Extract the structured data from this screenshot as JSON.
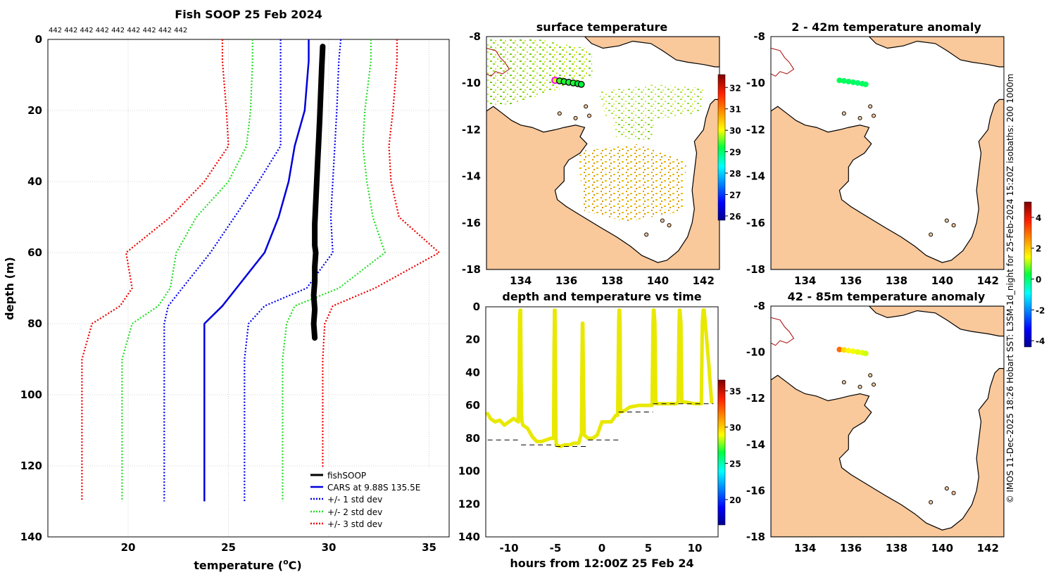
{
  "colors": {
    "land": "#f9c89b",
    "profile": "#000000",
    "cars": "#0000dd",
    "sd1": "#0000ee",
    "sd2": "#22dd22",
    "sd3": "#ee0000",
    "trace": "#e8e800",
    "grid": "#b0b0b0",
    "isobath": "#aa0000"
  },
  "caption": "© IMOS 11-Dec-2025 18:26 Hobart SST: L3SM-1d_night for 25-Feb-2024 15:20Z isobaths: 200  1000m",
  "chart_data": [
    {
      "id": "profile",
      "type": "line",
      "title": "Fish SOOP 25 Feb 2024",
      "subtitle": "442 442 442 442 442 442 442 442 442",
      "xlabel": "temperature (°C)",
      "xlabel_main": "temperature (",
      "xlabel_unit_sup": "o",
      "xlabel_unit_c": "C)",
      "ylabel": "depth (m)",
      "xlim": [
        16,
        36
      ],
      "ylim": [
        0,
        140
      ],
      "xticks": [
        20,
        25,
        30,
        35
      ],
      "yticks": [
        0,
        20,
        40,
        60,
        80,
        100,
        120,
        140
      ],
      "legend_position": "bottom-right",
      "series": [
        {
          "name": "fishSOOP",
          "style": "solid-thick",
          "color": "#000000",
          "x": [
            29.7,
            29.65,
            29.6,
            29.55,
            29.5,
            29.45,
            29.4,
            29.35,
            29.3,
            29.3,
            29.3,
            29.35,
            29.3,
            29.3,
            29.25,
            29.3,
            29.25,
            29.3
          ],
          "y": [
            2,
            8,
            15,
            22,
            28,
            34,
            40,
            46,
            52,
            56,
            58,
            60,
            64,
            68,
            72,
            76,
            80,
            84
          ]
        },
        {
          "name": "CARS at 9.88S 135.5E",
          "style": "solid",
          "color": "#0000dd",
          "x": [
            29.0,
            29.0,
            28.8,
            28.3,
            28.0,
            27.5,
            26.8,
            25.4,
            24.7,
            23.8,
            23.8,
            23.8
          ],
          "y": [
            0,
            6,
            20,
            30,
            40,
            50,
            60,
            70,
            75,
            80,
            90,
            130
          ]
        },
        {
          "name": "+/- 1 std dev",
          "style": "dotted",
          "color": "#0000ee",
          "x": [
            30.6,
            30.5,
            30.4,
            30.3,
            30.2,
            30.1,
            30.2,
            28.9,
            26.8,
            26.0,
            25.8,
            25.8
          ],
          "y": [
            0,
            6,
            20,
            30,
            40,
            50,
            60,
            70,
            75,
            80,
            90,
            130
          ]
        },
        {
          "name": "+/- 1 std dev (lower)",
          "style": "dotted",
          "color": "#0000ee",
          "legend": false,
          "x": [
            27.6,
            27.6,
            27.6,
            27.6,
            26.5,
            25.3,
            24.1,
            22.7,
            22.0,
            21.8,
            21.8,
            21.8
          ],
          "y": [
            0,
            6,
            20,
            30,
            40,
            50,
            60,
            70,
            75,
            80,
            90,
            130
          ]
        },
        {
          "name": "+/- 2 std dev",
          "style": "dotted",
          "color": "#22dd22",
          "x": [
            32.1,
            32.1,
            31.8,
            31.7,
            31.9,
            32.2,
            32.8,
            30.5,
            28.3,
            27.9,
            27.7,
            27.7
          ],
          "y": [
            0,
            6,
            20,
            30,
            40,
            50,
            60,
            70,
            75,
            80,
            90,
            130
          ]
        },
        {
          "name": "+/- 2 std dev (lower)",
          "style": "dotted",
          "color": "#22dd22",
          "legend": false,
          "x": [
            26.2,
            26.2,
            26.1,
            25.9,
            25.0,
            23.4,
            22.4,
            22.1,
            21.5,
            20.2,
            19.7,
            19.7
          ],
          "y": [
            0,
            6,
            20,
            30,
            40,
            50,
            60,
            70,
            75,
            80,
            90,
            130
          ]
        },
        {
          "name": "+/- 3 std dev",
          "style": "dotted",
          "color": "#ee0000",
          "x": [
            33.4,
            33.4,
            33.2,
            33.0,
            33.1,
            33.5,
            35.5,
            32.3,
            30.2,
            29.8,
            29.7,
            29.7
          ],
          "y": [
            0,
            6,
            20,
            30,
            40,
            50,
            60,
            70,
            75,
            80,
            90,
            130
          ]
        },
        {
          "name": "+/- 3 std dev (lower)",
          "style": "dotted",
          "color": "#ee0000",
          "legend": false,
          "x": [
            24.7,
            24.7,
            24.9,
            25.0,
            23.8,
            22.1,
            19.9,
            20.2,
            19.6,
            18.2,
            17.7,
            17.7
          ],
          "y": [
            0,
            6,
            20,
            30,
            40,
            50,
            60,
            70,
            75,
            80,
            90,
            130
          ]
        }
      ]
    },
    {
      "id": "sst_map",
      "type": "scatter",
      "title": "surface temperature",
      "xlim": [
        132.5,
        142.7
      ],
      "ylim": [
        -18,
        -8
      ],
      "xticks": [
        134,
        136,
        138,
        140,
        142
      ],
      "yticks": [
        -8,
        -10,
        -12,
        -14,
        -16,
        -18
      ],
      "colorbar": {
        "min": 25.8,
        "max": 32.6,
        "ticks": [
          26,
          27,
          28,
          29,
          30,
          31,
          32
        ]
      },
      "points": {
        "lon": [
          135.5,
          135.7,
          135.9,
          136.1,
          136.3,
          136.5,
          136.65
        ],
        "lat": [
          -9.88,
          -9.9,
          -9.93,
          -9.96,
          -9.99,
          -10.02,
          -10.05
        ],
        "value": [
          29.9,
          29.4,
          29.3,
          29.3,
          29.3,
          29.2,
          29.2
        ]
      }
    },
    {
      "id": "time_series",
      "type": "line",
      "title": "depth and temperature vs time",
      "xlabel": "hours from 12:00Z 25 Feb 24",
      "xlim": [
        -12.5,
        12.5
      ],
      "ylim": [
        0,
        140
      ],
      "xticks": [
        -10,
        -5,
        0,
        5,
        10
      ],
      "yticks": [
        0,
        20,
        40,
        60,
        80,
        100,
        120,
        140
      ],
      "colorbar": {
        "min": 16.5,
        "max": 36.5,
        "ticks": [
          20,
          25,
          30,
          35
        ]
      },
      "series": [
        {
          "name": "depth",
          "color": "#e8e800",
          "x": [
            -12.3,
            -12.0,
            -11.5,
            -11.0,
            -10.5,
            -10.0,
            -9.5,
            -9.0,
            -8.9,
            -8.85,
            -8.8,
            -8.75,
            -8.7,
            -8.65,
            -8.6,
            -8.5,
            -8.0,
            -7.5,
            -7.0,
            -6.5,
            -6.0,
            -5.5,
            -5.2,
            -5.15,
            -5.1,
            -5.05,
            -5.0,
            -4.95,
            -4.9,
            -4.5,
            -4.0,
            -3.5,
            -3.0,
            -2.5,
            -2.3,
            -2.2,
            -2.15,
            -2.1,
            -2.05,
            -2.0,
            -1.9,
            -1.5,
            -1.0,
            -0.5,
            0.0,
            0.5,
            1.0,
            1.5,
            1.7,
            1.8,
            1.85,
            1.9,
            1.95,
            2.0,
            2.5,
            3.0,
            4.0,
            5.0,
            5.4,
            5.5,
            5.55,
            5.6,
            5.7,
            5.8,
            6.5,
            7.0,
            7.5,
            8.0,
            8.2,
            8.3,
            8.35,
            8.4,
            8.5,
            8.6,
            9.0,
            10.0,
            10.7,
            10.8,
            10.9,
            11.0,
            11.5,
            11.8
          ],
          "y": [
            65,
            68,
            70,
            69,
            72,
            70,
            68,
            70,
            40,
            5,
            2,
            2,
            45,
            65,
            70,
            72,
            74,
            79,
            82,
            82,
            81,
            80,
            80,
            30,
            2,
            2,
            40,
            80,
            84,
            85,
            84,
            84,
            83,
            83,
            79,
            77,
            40,
            10,
            10,
            40,
            78,
            80,
            80,
            78,
            70,
            70,
            70,
            66,
            66,
            10,
            2,
            2,
            10,
            64,
            63,
            61,
            60,
            60,
            60,
            10,
            2,
            2,
            10,
            59,
            59,
            59,
            59,
            59,
            58,
            10,
            2,
            2,
            10,
            58,
            58,
            59,
            59,
            10,
            2,
            2,
            35,
            58
          ]
        },
        {
          "name": "segment max depth",
          "style": "dashed",
          "color": "#000000",
          "segments": [
            {
              "x": [
                -12.3,
                -8.7
              ],
              "y": [
                81,
                81
              ]
            },
            {
              "x": [
                -8.7,
                -5.0
              ],
              "y": [
                84,
                84
              ]
            },
            {
              "x": [
                -5.0,
                -1.5
              ],
              "y": [
                85,
                85
              ]
            },
            {
              "x": [
                -1.5,
                1.8
              ],
              "y": [
                81,
                81
              ]
            },
            {
              "x": [
                1.8,
                5.5
              ],
              "y": [
                64,
                64
              ]
            },
            {
              "x": [
                5.5,
                12.0
              ],
              "y": [
                59,
                59
              ]
            }
          ]
        }
      ]
    },
    {
      "id": "anom_2_42",
      "type": "scatter",
      "title": "2 - 42m temperature anomaly",
      "xlim": [
        132.5,
        142.7
      ],
      "ylim": [
        -18,
        -8
      ],
      "xticks": [
        134,
        136,
        138,
        140,
        142
      ],
      "yticks": [
        -8,
        -10,
        -12,
        -14,
        -16,
        -18
      ],
      "points": {
        "lon": [
          135.5,
          135.7,
          135.9,
          136.1,
          136.3,
          136.5,
          136.65
        ],
        "lat": [
          -9.88,
          -9.9,
          -9.93,
          -9.96,
          -9.99,
          -10.02,
          -10.05
        ],
        "value": [
          0.2,
          0.1,
          0.1,
          0.1,
          0.0,
          0.1,
          0.1
        ]
      }
    },
    {
      "id": "anom_42_85",
      "type": "scatter",
      "title": "42 - 85m temperature anomaly",
      "xlim": [
        132.5,
        142.7
      ],
      "ylim": [
        -18,
        -8
      ],
      "xticks": [
        134,
        136,
        138,
        140,
        142
      ],
      "yticks": [
        -8,
        -10,
        -12,
        -14,
        -16,
        -18
      ],
      "points": {
        "lon": [
          135.5,
          135.7,
          135.9,
          136.1,
          136.3,
          136.5,
          136.65
        ],
        "lat": [
          -9.88,
          -9.9,
          -9.93,
          -9.96,
          -9.99,
          -10.02,
          -10.05
        ],
        "value": [
          3.0,
          1.8,
          1.5,
          1.4,
          1.3,
          1.3,
          1.2
        ]
      }
    },
    {
      "id": "anomaly_colorbar",
      "type": "heatmap",
      "colorbar": {
        "min": -4.4,
        "max": 5.0,
        "ticks": [
          -4,
          -2,
          0,
          2,
          4
        ]
      }
    }
  ]
}
